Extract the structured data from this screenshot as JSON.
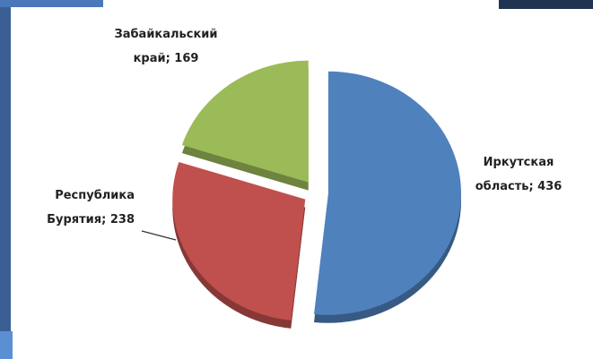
{
  "chart_data": {
    "type": "pie",
    "values": [
      436,
      238,
      169
    ],
    "value_labels": [
      "Иркутская область; 436",
      "Республика Бурятия; 238",
      "Забайкальский край; 169"
    ],
    "colors": [
      "#4f81bd",
      "#c0504d",
      "#9bbb59"
    ]
  }
}
